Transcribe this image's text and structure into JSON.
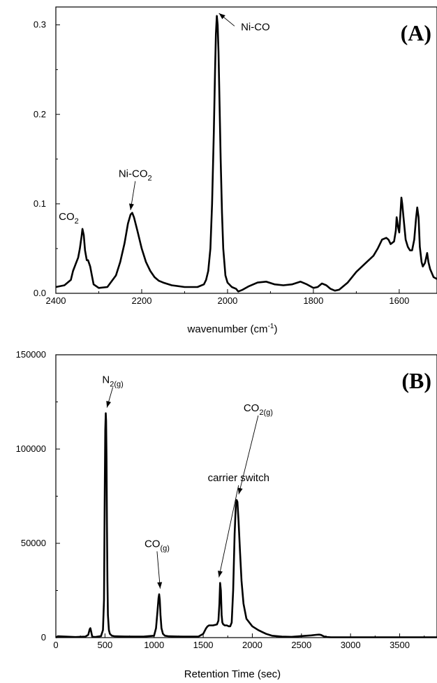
{
  "chart_data": [
    {
      "id": "A",
      "type": "line",
      "panel_label": "(A)",
      "xlabel": "wavenumber (cm",
      "xlabel_sup": "-1",
      "xlabel_end": ")",
      "ylabel": "",
      "xlim": [
        2400,
        1512
      ],
      "ylim": [
        0,
        0.32
      ],
      "xticks": [
        2400,
        2200,
        2000,
        1800,
        1600
      ],
      "xtick_labels": [
        "2400",
        "2200",
        "2000",
        "1800",
        "1600"
      ],
      "yticks": [
        0.0,
        0.1,
        0.2,
        0.3
      ],
      "ytick_labels": [
        "0.0",
        "0.1",
        "0.2",
        "0.3"
      ],
      "series": [
        {
          "x": [
            2400,
            2380,
            2365,
            2360,
            2352,
            2348,
            2344,
            2340,
            2338,
            2335,
            2332,
            2328,
            2325,
            2320,
            2316,
            2312,
            2300,
            2280,
            2260,
            2250,
            2240,
            2232,
            2226,
            2222,
            2218,
            2210,
            2200,
            2190,
            2180,
            2170,
            2160,
            2150,
            2130,
            2100,
            2070,
            2055,
            2050,
            2045,
            2040,
            2036,
            2032,
            2029,
            2027,
            2025,
            2023,
            2021,
            2019,
            2016,
            2013,
            2010,
            2005,
            2000,
            1990,
            1980,
            1975,
            1965,
            1950,
            1930,
            1910,
            1890,
            1870,
            1850,
            1830,
            1815,
            1800,
            1790,
            1780,
            1770,
            1760,
            1750,
            1740,
            1720,
            1700,
            1680,
            1660,
            1650,
            1640,
            1630,
            1625,
            1620,
            1612,
            1608,
            1606,
            1603,
            1600,
            1597,
            1595,
            1593,
            1590,
            1585,
            1580,
            1575,
            1570,
            1565,
            1561,
            1558,
            1555,
            1552,
            1548,
            1545,
            1540,
            1535,
            1532,
            1528,
            1520,
            1512
          ],
          "y": [
            0.007,
            0.009,
            0.015,
            0.025,
            0.035,
            0.04,
            0.05,
            0.064,
            0.072,
            0.065,
            0.048,
            0.037,
            0.037,
            0.03,
            0.02,
            0.01,
            0.006,
            0.007,
            0.02,
            0.035,
            0.056,
            0.078,
            0.088,
            0.09,
            0.085,
            0.07,
            0.05,
            0.035,
            0.025,
            0.018,
            0.014,
            0.012,
            0.009,
            0.007,
            0.007,
            0.01,
            0.015,
            0.025,
            0.05,
            0.1,
            0.18,
            0.25,
            0.29,
            0.31,
            0.3,
            0.27,
            0.22,
            0.15,
            0.09,
            0.05,
            0.02,
            0.012,
            0.007,
            0.005,
            0.002,
            0.004,
            0.008,
            0.012,
            0.013,
            0.01,
            0.009,
            0.01,
            0.013,
            0.01,
            0.006,
            0.007,
            0.011,
            0.009,
            0.005,
            0.003,
            0.004,
            0.012,
            0.024,
            0.033,
            0.042,
            0.05,
            0.06,
            0.062,
            0.06,
            0.055,
            0.058,
            0.07,
            0.085,
            0.075,
            0.068,
            0.09,
            0.107,
            0.1,
            0.085,
            0.06,
            0.052,
            0.048,
            0.048,
            0.06,
            0.083,
            0.096,
            0.085,
            0.052,
            0.035,
            0.03,
            0.034,
            0.045,
            0.035,
            0.027,
            0.018,
            0.016
          ]
        }
      ],
      "annotations": [
        {
          "text": "CO",
          "sub": "2",
          "x": 2370,
          "y": 0.082
        },
        {
          "text": "Ni-CO",
          "sub": "2",
          "x": 2215,
          "y": 0.13,
          "arrow_to": [
            2226,
            0.093
          ]
        },
        {
          "text": "Ni-CO",
          "sub": "",
          "x": 1935,
          "y": 0.294,
          "arrow_to": [
            2020,
            0.313
          ]
        }
      ]
    },
    {
      "id": "B",
      "type": "line",
      "panel_label": "(B)",
      "xlabel": "Retention Time (sec)",
      "ylabel": "",
      "xlim": [
        0,
        3880
      ],
      "ylim": [
        0,
        150000
      ],
      "xticks": [
        0,
        500,
        1000,
        1500,
        2000,
        2500,
        3000,
        3500
      ],
      "xtick_labels": [
        "0",
        "500",
        "1000",
        "1500",
        "2000",
        "2500",
        "3000",
        "3500"
      ],
      "yticks": [
        0,
        50000,
        100000,
        150000
      ],
      "ytick_labels": [
        "0",
        "50000",
        "100000",
        "150000"
      ],
      "series": [
        {
          "x": [
            0,
            20,
            100,
            200,
            300,
            330,
            345,
            352,
            360,
            370,
            400,
            460,
            480,
            490,
            497,
            503,
            508,
            512,
            516,
            520,
            525,
            530,
            540,
            550,
            570,
            600,
            700,
            800,
            900,
            1000,
            1020,
            1035,
            1045,
            1052,
            1058,
            1065,
            1075,
            1090,
            1110,
            1150,
            1300,
            1450,
            1500,
            1520,
            1530,
            1545,
            1560,
            1600,
            1640,
            1655,
            1665,
            1672,
            1680,
            1688,
            1695,
            1705,
            1720,
            1740,
            1760,
            1775,
            1790,
            1805,
            1820,
            1832,
            1840,
            1848,
            1860,
            1875,
            1890,
            1910,
            1940,
            2000,
            2060,
            2100,
            2140,
            2200,
            2300,
            2400,
            2500,
            2600,
            2650,
            2680,
            2700,
            2730,
            2760,
            2800,
            3000,
            3500,
            3880
          ],
          "y": [
            0,
            700,
            500,
            300,
            500,
            1500,
            4500,
            5000,
            3000,
            500,
            300,
            800,
            4000,
            20000,
            70000,
            110000,
            119000,
            115000,
            95000,
            60000,
            30000,
            12000,
            4000,
            2000,
            1000,
            700,
            600,
            500,
            600,
            1000,
            5000,
            14000,
            21000,
            23000,
            20000,
            12000,
            5000,
            2000,
            1000,
            700,
            500,
            500,
            2000,
            4000,
            5000,
            6000,
            6500,
            6500,
            7000,
            9000,
            18000,
            29000,
            25000,
            12000,
            8000,
            7000,
            6500,
            6500,
            6000,
            6000,
            8000,
            25000,
            55000,
            70000,
            73000,
            72000,
            62000,
            45000,
            30000,
            18000,
            10000,
            6000,
            4000,
            3000,
            2000,
            1000,
            500,
            400,
            800,
            1200,
            1500,
            1600,
            1400,
            600,
            300,
            200,
            200,
            200,
            200
          ]
        }
      ],
      "annotations": [
        {
          "text": "N",
          "sub": "2(g)",
          "x": 580,
          "y": 135000,
          "arrow_to": [
            520,
            122000
          ]
        },
        {
          "text": "CO",
          "sub": "(g)",
          "x": 1030,
          "y": 48000,
          "arrow_to": [
            1062,
            26000
          ]
        },
        {
          "text": "carrier switch",
          "sub": "",
          "x": 1860,
          "y": 83000,
          "arrow_to": [
            1660,
            32000
          ]
        },
        {
          "text": "CO",
          "sub": "2(g)",
          "x": 2060,
          "y": 120000,
          "arrow_to": [
            1862,
            76000
          ]
        }
      ]
    }
  ]
}
